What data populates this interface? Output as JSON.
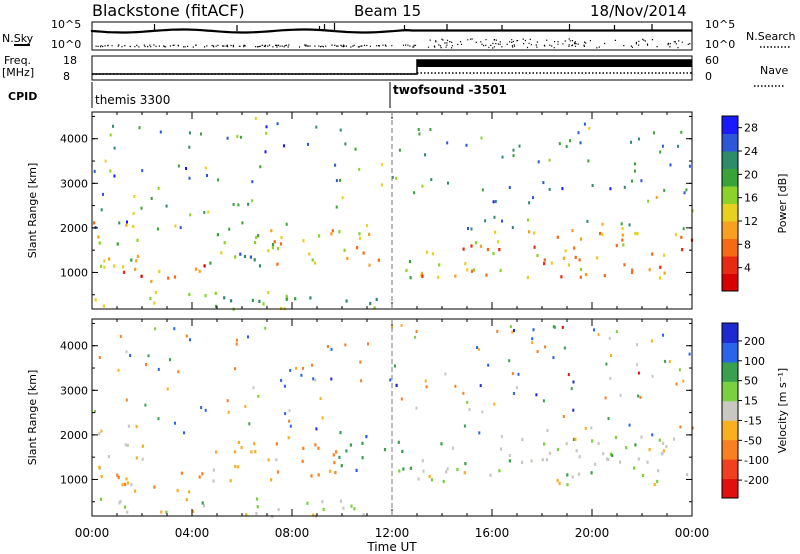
{
  "header": {
    "title_left": "Blackstone (fitACF)",
    "title_center": "Beam 15",
    "title_right": "18/Nov/2014"
  },
  "panels": {
    "nsky_label": "N.Sky",
    "nsearch_label": "N.Search",
    "nsky_ticks": [
      "10^5",
      "10^0"
    ],
    "nsearch_ticks": [
      "10^5",
      "10^0"
    ],
    "freq_label": "Freq.",
    "freq_unit": "[MHz]",
    "freq_ticks": [
      "18",
      "8"
    ],
    "nave_label": "Nave",
    "nave_ticks": [
      "60",
      "0"
    ],
    "cpid_label": "CPID",
    "cpid_segments": [
      {
        "name": "themis 3300",
        "start_ut": 0.0,
        "end_ut": 12.0
      },
      {
        "name": "twofsound -3501",
        "start_ut": 12.0,
        "end_ut": 24.0
      }
    ]
  },
  "chart_data": [
    {
      "type": "heatmap",
      "title": "",
      "xlabel": "Time UT",
      "ylabel": "Slant Range [km]",
      "x_ticks": [
        "00:00",
        "04:00",
        "08:00",
        "12:00",
        "16:00",
        "20:00",
        "00:00"
      ],
      "xlim": [
        0,
        24
      ],
      "y_ticks": [
        "1000",
        "2000",
        "3000",
        "4000"
      ],
      "ylim": [
        180,
        4600
      ],
      "colorbar": {
        "label": "Power [dB]",
        "ticks": [
          "4",
          "8",
          "12",
          "16",
          "20",
          "24",
          "28"
        ],
        "range": [
          0,
          30
        ],
        "colors": [
          "#1a1aff",
          "#2d57d6",
          "#2e8c6a",
          "#39a33a",
          "#8cd22a",
          "#e8d020",
          "#f8a020",
          "#f56a14",
          "#e82a10",
          "#d80000"
        ]
      },
      "echo_regions": [
        {
          "t0": 0.0,
          "t1": 2.0,
          "r0": 900,
          "r1": 2300,
          "level": 16
        },
        {
          "t0": 0.8,
          "t1": 4.5,
          "r0": 700,
          "r1": 1200,
          "level": 22
        },
        {
          "t0": 4.5,
          "t1": 7.5,
          "r0": 1000,
          "r1": 1900,
          "level": 10
        },
        {
          "t0": 7.0,
          "t1": 11.8,
          "r0": 1100,
          "r1": 2000,
          "level": 18
        },
        {
          "t0": 12.2,
          "t1": 12.9,
          "r0": 900,
          "r1": 1600,
          "level": 14
        },
        {
          "t0": 13.0,
          "t1": 24.0,
          "r0": 900,
          "r1": 2000,
          "level": 20
        },
        {
          "t0": 0.0,
          "t1": 12.0,
          "r0": 200,
          "r1": 600,
          "level": 12
        }
      ]
    },
    {
      "type": "heatmap",
      "title": "",
      "xlabel": "Time UT",
      "ylabel": "Slant Range [km]",
      "x_ticks": [
        "00:00",
        "04:00",
        "08:00",
        "12:00",
        "16:00",
        "20:00",
        "00:00"
      ],
      "xlim": [
        0,
        24
      ],
      "y_ticks": [
        "1000",
        "2000",
        "3000",
        "4000"
      ],
      "ylim": [
        180,
        4600
      ],
      "colorbar": {
        "label": "Velocity [m s⁻¹]",
        "ticks": [
          "200",
          "100",
          "50",
          "15",
          "-15",
          "-50",
          "-100",
          "-200"
        ],
        "colors": [
          "#1e2ad0",
          "#2a64e8",
          "#3aa050",
          "#7ad040",
          "#c8c8c0",
          "#f8b020",
          "#f88020",
          "#f04020",
          "#e01010"
        ]
      },
      "echo_regions": [
        {
          "t0": 0.0,
          "t1": 2.0,
          "r0": 900,
          "r1": 2300,
          "velocity": -15
        },
        {
          "t0": 0.8,
          "t1": 4.5,
          "r0": 700,
          "r1": 1200,
          "velocity": -50
        },
        {
          "t0": 4.5,
          "t1": 7.5,
          "r0": 1000,
          "r1": 1900,
          "velocity": -30
        },
        {
          "t0": 7.0,
          "t1": 9.8,
          "r0": 1100,
          "r1": 2000,
          "velocity": -60
        },
        {
          "t0": 9.8,
          "t1": 11.8,
          "r0": 1200,
          "r1": 2100,
          "velocity": 40
        },
        {
          "t0": 12.0,
          "t1": 12.8,
          "r0": 1000,
          "r1": 2200,
          "velocity": 30
        },
        {
          "t0": 12.1,
          "t1": 12.6,
          "r0": 2900,
          "r1": 3400,
          "velocity": 150
        },
        {
          "t0": 13.0,
          "t1": 24.0,
          "r0": 900,
          "r1": 2000,
          "velocity": 0
        },
        {
          "t0": 0.0,
          "t1": 12.0,
          "r0": 200,
          "r1": 600,
          "velocity": 0
        }
      ]
    }
  ]
}
